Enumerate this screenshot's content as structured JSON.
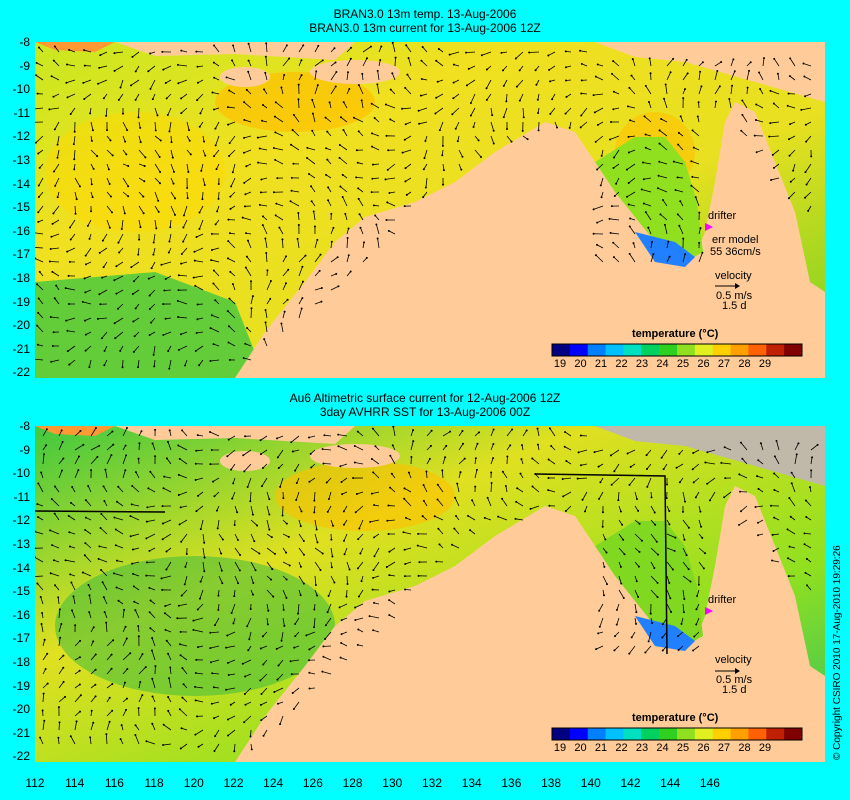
{
  "top_panel": {
    "title_line1": "BRAN3.0 13m temp. 13-Aug-2006",
    "title_line2": "BRAN3.0 13m current for 13-Aug-2006 12Z",
    "legend": {
      "title": "temperature (°C)",
      "ticks": [
        "19",
        "20",
        "21",
        "22",
        "23",
        "24",
        "25",
        "26",
        "27",
        "28",
        "29"
      ]
    },
    "drifter_label": "drifter",
    "err_label": "err model",
    "err_value": "55 36cm/s",
    "velocity_label": "velocity",
    "velocity_scale": "0.5 m/s",
    "velocity_time": "1.5 d"
  },
  "bottom_panel": {
    "title_line1": "Au6 Altimetric surface current for 12-Aug-2006 12Z",
    "title_line2": "3day AVHRR SST for 13-Aug-2006 00Z",
    "legend": {
      "title": "temperature (°C)",
      "ticks": [
        "19",
        "20",
        "21",
        "22",
        "23",
        "24",
        "25",
        "26",
        "27",
        "28",
        "29"
      ]
    },
    "drifter_label": "drifter",
    "velocity_label": "velocity",
    "velocity_scale": "0.5 m/s",
    "velocity_time": "1.5 d"
  },
  "axes": {
    "y_ticks": [
      "-8",
      "-9",
      "-10",
      "-11",
      "-12",
      "-13",
      "-14",
      "-15",
      "-16",
      "-17",
      "-18",
      "-19",
      "-20",
      "-21",
      "-22"
    ],
    "x_ticks": [
      "112",
      "114",
      "116",
      "118",
      "120",
      "122",
      "124",
      "126",
      "128",
      "130",
      "132",
      "134",
      "136",
      "138",
      "140",
      "142",
      "144",
      "146"
    ]
  },
  "copyright": "© Copyright CSIRO 2010  17-Aug-2010 19:29:26",
  "colors": {
    "background": "#00ffff",
    "land": "#ffcc99",
    "colormap": [
      "#000080",
      "#0000ff",
      "#0080ff",
      "#00c0ff",
      "#00e0c0",
      "#00d060",
      "#30d020",
      "#90e020",
      "#e0f020",
      "#ffd000",
      "#ffa000",
      "#ff6000",
      "#c02000",
      "#800000"
    ]
  }
}
